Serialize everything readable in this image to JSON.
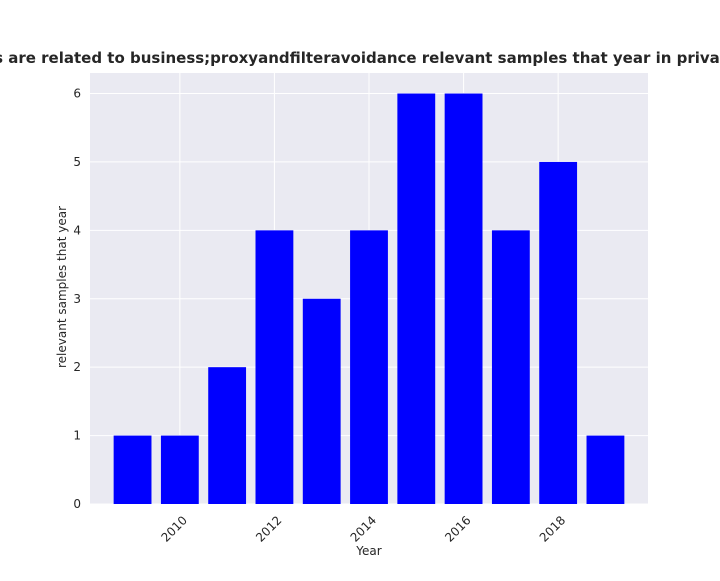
{
  "chart_data": {
    "type": "bar",
    "title": "Categories are related to business;proxyandfilteravoidance relevant samples that year in privacy policies",
    "xlabel": "Year",
    "ylabel": "relevant samples that year",
    "x": [
      2009,
      2010,
      2011,
      2012,
      2013,
      2014,
      2015,
      2016,
      2017,
      2018,
      2019
    ],
    "values": [
      1,
      1,
      2,
      4,
      3,
      4,
      6,
      6,
      4,
      5,
      1
    ],
    "xticks": [
      "2010",
      "2012",
      "2014",
      "2016",
      "2018"
    ],
    "yticks": [
      "0",
      "1",
      "2",
      "3",
      "4",
      "5",
      "6"
    ],
    "xlim": [
      2008.1,
      2019.9
    ],
    "ylim": [
      0,
      6.3
    ],
    "bar_color": "#0000ff",
    "background_color": "#eaeaf2",
    "grid": true
  }
}
